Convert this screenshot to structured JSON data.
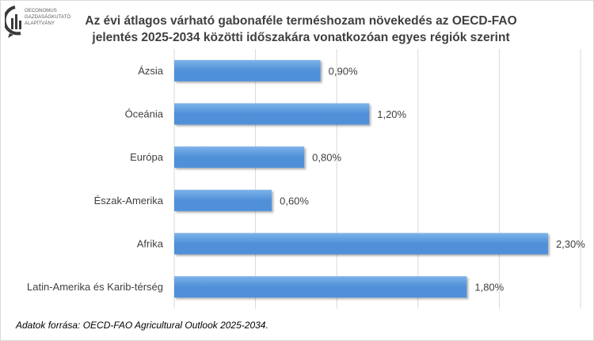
{
  "logo": {
    "icon": "oeconomus-logo-icon",
    "lines": [
      "OECONOMUS",
      "GAZDASÁGKUTATÓ",
      "ALAPÍTVÁNY"
    ]
  },
  "colors": {
    "bar": "#4f90d8",
    "bar_light": "#7db3ea",
    "grid": "#d9d9d9",
    "text": "#404040"
  },
  "chart_data": {
    "type": "bar",
    "orientation": "horizontal",
    "title": [
      "Az évi átlagos várható gabonaféle terméshozam növekedés az OECD-FAO",
      "jelentés 2025-2034 közötti időszakára vonatkozóan egyes régiók szerint"
    ],
    "categories": [
      "Ázsia",
      "Óceánia",
      "Európa",
      "Észak-Amerika",
      "Afrika",
      "Latin-Amerika és Karib-térség"
    ],
    "values": [
      0.9,
      1.2,
      0.8,
      0.6,
      2.3,
      1.8
    ],
    "value_labels": [
      "0,90%",
      "1,20%",
      "0,80%",
      "0,60%",
      "2,30%",
      "1,80%"
    ],
    "xlim": [
      0,
      2.5
    ],
    "grid": true,
    "legend": "none"
  },
  "source_note": "Adatok forrása: OECD-FAO Agricultural Outlook 2025-2034."
}
